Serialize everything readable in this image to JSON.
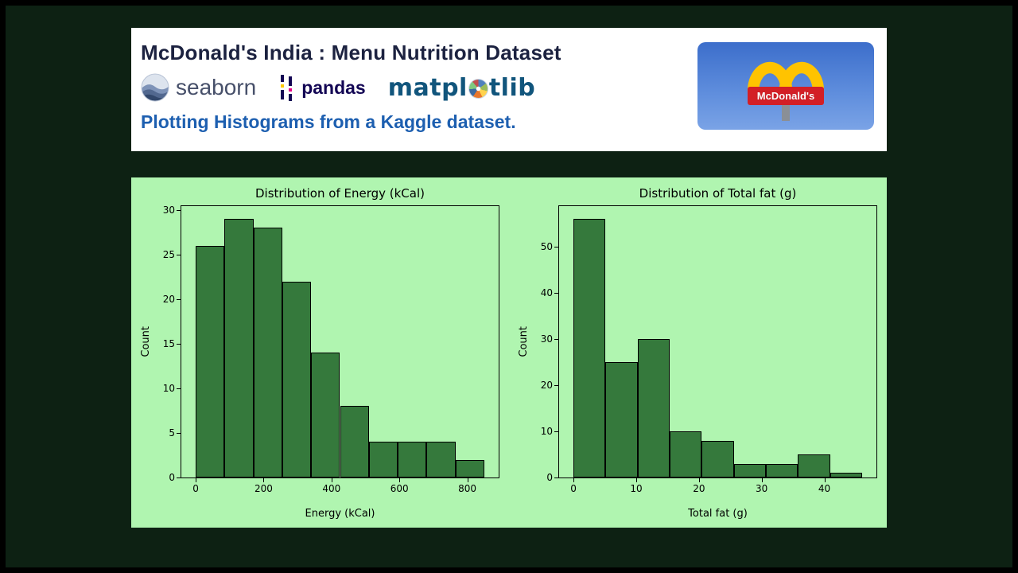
{
  "header": {
    "title": "McDonald's India : Menu Nutrition Dataset",
    "subtitle": "Plotting Histograms from a Kaggle dataset.",
    "logos": {
      "seaborn": "seaborn",
      "pandas": "pandas",
      "matplotlib_pre": "matpl",
      "matplotlib_post": "tlib"
    },
    "mcdonalds": {
      "sign_text": "McDonald's"
    }
  },
  "colors": {
    "page_bg": "#0d2113",
    "header_bg": "#ffffff",
    "panel_bg": "#b0f5b0",
    "bar_fill": "#35793c",
    "bar_edge": "#000000",
    "subtitle_blue": "#1d5fb0",
    "mcd_red": "#d31f26",
    "mcd_yellow": "#ffc300"
  },
  "chart_data": [
    {
      "type": "bar",
      "title": "Distribution of Energy (kCal)",
      "xlabel": "Energy (kCal)",
      "ylabel": "Count",
      "bins_start": 0,
      "bin_width": 85,
      "counts": [
        26,
        29,
        28,
        22,
        14,
        8,
        4,
        4,
        4,
        2
      ],
      "xticks": [
        0,
        200,
        400,
        600,
        800
      ],
      "yticks": [
        0,
        5,
        10,
        15,
        20,
        25,
        30
      ],
      "xlim": [
        -42.5,
        892.5
      ],
      "ylim": [
        0,
        30.45
      ],
      "grid": false,
      "legend": null,
      "bar_color": "#35793c",
      "bar_edge": "#000000"
    },
    {
      "type": "bar",
      "title": "Distribution of Total fat (g)",
      "xlabel": "Total fat (g)",
      "ylabel": "Count",
      "bins_start": 0,
      "bin_width": 5.111,
      "counts": [
        56,
        25,
        30,
        10,
        8,
        3,
        3,
        5,
        1
      ],
      "xticks": [
        0,
        10,
        20,
        30,
        40
      ],
      "yticks": [
        0,
        10,
        20,
        30,
        40,
        50
      ],
      "xlim": [
        -2.3,
        48.3
      ],
      "ylim": [
        0,
        58.8
      ],
      "grid": false,
      "legend": null,
      "bar_color": "#35793c",
      "bar_edge": "#000000"
    }
  ]
}
